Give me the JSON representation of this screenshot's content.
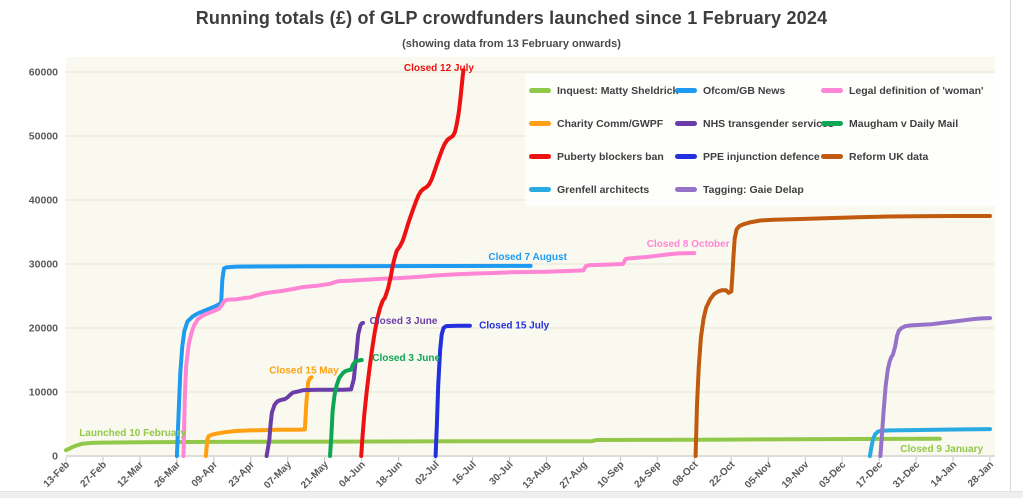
{
  "title": "Running totals (£) of GLP crowdfunders launched since 1 February 2024",
  "subtitle": "(showing data from 13 February onwards)",
  "chart_data": {
    "type": "line",
    "x_tick_labels": [
      "13-Feb",
      "27-Feb",
      "12-Mar",
      "26-Mar",
      "09-Apr",
      "23-Apr",
      "07-May",
      "21-May",
      "04-Jun",
      "18-Jun",
      "02-Jul",
      "16-Jul",
      "30-Jul",
      "13-Aug",
      "27-Aug",
      "10-Sep",
      "24-Sep",
      "08-Oct",
      "22-Oct",
      "05-Nov",
      "19-Nov",
      "03-Dec",
      "17-Dec",
      "31-Dec",
      "14-Jan",
      "28-Jan"
    ],
    "x_tick_interval_days": 14,
    "x_range_days": [
      0,
      350
    ],
    "y_ticks": [
      0,
      10000,
      20000,
      30000,
      40000,
      50000,
      60000
    ],
    "ylim": [
      0,
      60000
    ],
    "grid": true,
    "legend_position": "top-right, 3 columns, white box over plot",
    "plot_bg": "#FAF9EF",
    "grid_color": "#E6E5DA",
    "axis_color": "#C0C0C0",
    "label_color": "#595959",
    "series": [
      {
        "name": "Inquest: Matty Sheldrick",
        "color": "#92C849",
        "points": [
          [
            0,
            900
          ],
          [
            3,
            1500
          ],
          [
            6,
            1900
          ],
          [
            10,
            2050
          ],
          [
            14,
            2100
          ],
          [
            28,
            2150
          ],
          [
            56,
            2200
          ],
          [
            100,
            2250
          ],
          [
            150,
            2300
          ],
          [
            199,
            2300
          ],
          [
            201,
            2500
          ],
          [
            240,
            2550
          ],
          [
            300,
            2650
          ],
          [
            331,
            2700
          ]
        ]
      },
      {
        "name": "Ofcom/GB News",
        "color": "#1E9BF0",
        "points": [
          [
            42,
            0
          ],
          [
            42.7,
            7000
          ],
          [
            43.3,
            13000
          ],
          [
            44,
            17000
          ],
          [
            44.8,
            19500
          ],
          [
            46,
            21000
          ],
          [
            48,
            21800
          ],
          [
            50,
            22300
          ],
          [
            53,
            22800
          ],
          [
            56,
            23300
          ],
          [
            58,
            23700
          ],
          [
            58.8,
            24000
          ],
          [
            59.2,
            27500
          ],
          [
            59.8,
            29300
          ],
          [
            61,
            29500
          ],
          [
            65,
            29600
          ],
          [
            90,
            29650
          ],
          [
            176,
            29700
          ]
        ]
      },
      {
        "name": "Legal definition of 'woman'",
        "color": "#FF85D5",
        "points": [
          [
            44.5,
            0
          ],
          [
            45,
            9000
          ],
          [
            45.5,
            14000
          ],
          [
            46.5,
            17500
          ],
          [
            47.5,
            19200
          ],
          [
            48.5,
            20400
          ],
          [
            50,
            21400
          ],
          [
            52,
            22000
          ],
          [
            55,
            22500
          ],
          [
            58,
            23000
          ],
          [
            60,
            24200
          ],
          [
            61,
            24400
          ],
          [
            65,
            24500
          ],
          [
            68,
            24700
          ],
          [
            70,
            24800
          ],
          [
            72,
            25100
          ],
          [
            75,
            25400
          ],
          [
            78,
            25600
          ],
          [
            82,
            25800
          ],
          [
            86,
            26100
          ],
          [
            90,
            26400
          ],
          [
            95,
            26600
          ],
          [
            100,
            26900
          ],
          [
            103,
            27300
          ],
          [
            108,
            27400
          ],
          [
            112,
            27500
          ],
          [
            120,
            27700
          ],
          [
            126,
            27800
          ],
          [
            134,
            28000
          ],
          [
            140,
            28200
          ],
          [
            148,
            28400
          ],
          [
            154,
            28500
          ],
          [
            162,
            28600
          ],
          [
            168,
            28700
          ],
          [
            176,
            28750
          ],
          [
            182,
            28800
          ],
          [
            190,
            28900
          ],
          [
            196,
            29000
          ],
          [
            197,
            29700
          ],
          [
            198,
            29800
          ],
          [
            205,
            29900
          ],
          [
            211,
            30000
          ],
          [
            212,
            30800
          ],
          [
            214,
            30900
          ],
          [
            220,
            31100
          ],
          [
            224,
            31300
          ],
          [
            228,
            31500
          ],
          [
            232,
            31650
          ],
          [
            238,
            31700
          ]
        ]
      },
      {
        "name": "Charity Comm/GWPF",
        "color": "#FFA012",
        "points": [
          [
            53,
            0
          ],
          [
            53.5,
            2500
          ],
          [
            54,
            3100
          ],
          [
            55,
            3300
          ],
          [
            57,
            3500
          ],
          [
            60,
            3700
          ],
          [
            63,
            3850
          ],
          [
            66,
            3950
          ],
          [
            70,
            4000
          ],
          [
            75,
            4050
          ],
          [
            80,
            4100
          ],
          [
            88,
            4100
          ],
          [
            90.5,
            4150
          ],
          [
            91,
            8000
          ],
          [
            91.7,
            11500
          ],
          [
            92.5,
            12200
          ],
          [
            93,
            12300
          ]
        ]
      },
      {
        "name": "NHS transgender services",
        "color": "#6A3DA8",
        "points": [
          [
            76,
            0
          ],
          [
            77,
            2500
          ],
          [
            77.5,
            5000
          ],
          [
            78,
            6800
          ],
          [
            79,
            8000
          ],
          [
            80,
            8500
          ],
          [
            81,
            8700
          ],
          [
            83,
            8900
          ],
          [
            84,
            9200
          ],
          [
            85,
            9600
          ],
          [
            86,
            9900
          ],
          [
            88,
            10100
          ],
          [
            90,
            10300
          ],
          [
            95,
            10350
          ],
          [
            105,
            10350
          ],
          [
            108,
            10400
          ],
          [
            109,
            12000
          ],
          [
            110,
            16000
          ],
          [
            110.7,
            19000
          ],
          [
            111.5,
            20400
          ],
          [
            112,
            20700
          ],
          [
            112.5,
            20800
          ]
        ]
      },
      {
        "name": "Maugham v Daily Mail",
        "color": "#0DA655",
        "points": [
          [
            100,
            0
          ],
          [
            100.5,
            3000
          ],
          [
            101,
            7000
          ],
          [
            101.7,
            9500
          ],
          [
            102.5,
            11000
          ],
          [
            103.5,
            12200
          ],
          [
            105,
            13000
          ],
          [
            106,
            13300
          ],
          [
            107,
            13400
          ],
          [
            108,
            13500
          ],
          [
            108.7,
            14300
          ],
          [
            109.5,
            14700
          ],
          [
            110.5,
            14900
          ],
          [
            112,
            15000
          ]
        ]
      },
      {
        "name": "Puberty blockers ban",
        "color": "#EE1111",
        "points": [
          [
            111.8,
            0
          ],
          [
            112.3,
            3000
          ],
          [
            113,
            6500
          ],
          [
            114,
            10500
          ],
          [
            115,
            13800
          ],
          [
            116,
            16800
          ],
          [
            117,
            19500
          ],
          [
            118,
            21600
          ],
          [
            119,
            23200
          ],
          [
            120,
            24300
          ],
          [
            120.8,
            24700
          ],
          [
            122,
            26200
          ],
          [
            123,
            28000
          ],
          [
            123.8,
            29800
          ],
          [
            124.5,
            31000
          ],
          [
            125.3,
            32100
          ],
          [
            126.5,
            32800
          ],
          [
            127.5,
            33600
          ],
          [
            128.5,
            34800
          ],
          [
            129.5,
            36200
          ],
          [
            130.5,
            37400
          ],
          [
            131.5,
            38600
          ],
          [
            132.5,
            39700
          ],
          [
            133.5,
            40700
          ],
          [
            134.3,
            41300
          ],
          [
            135.3,
            41700
          ],
          [
            136.5,
            42000
          ],
          [
            137.5,
            42400
          ],
          [
            138.5,
            43200
          ],
          [
            139.5,
            44400
          ],
          [
            140.5,
            45600
          ],
          [
            141.5,
            46800
          ],
          [
            142.5,
            47900
          ],
          [
            143.5,
            48800
          ],
          [
            144.5,
            49400
          ],
          [
            145.5,
            49700
          ],
          [
            146.5,
            50000
          ],
          [
            147.3,
            50600
          ],
          [
            148,
            51800
          ],
          [
            148.7,
            53500
          ],
          [
            149.3,
            55500
          ],
          [
            149.8,
            57500
          ],
          [
            150.3,
            59500
          ],
          [
            150.6,
            60300
          ]
        ]
      },
      {
        "name": "PPE injunction defence",
        "color": "#2230DD",
        "points": [
          [
            140,
            0
          ],
          [
            140.5,
            5000
          ],
          [
            141,
            11000
          ],
          [
            141.7,
            16500
          ],
          [
            142.3,
            19000
          ],
          [
            143,
            20000
          ],
          [
            144,
            20300
          ],
          [
            148,
            20350
          ],
          [
            153,
            20350
          ]
        ]
      },
      {
        "name": "Reform UK data",
        "color": "#C1590F",
        "points": [
          [
            238.5,
            0
          ],
          [
            239,
            8000
          ],
          [
            239.7,
            14000
          ],
          [
            240.5,
            18500
          ],
          [
            241.5,
            21500
          ],
          [
            242.5,
            23200
          ],
          [
            244,
            24500
          ],
          [
            245.5,
            25300
          ],
          [
            247,
            25700
          ],
          [
            248.5,
            25900
          ],
          [
            250,
            25900
          ],
          [
            251,
            25500
          ],
          [
            252,
            25700
          ],
          [
            252.4,
            28000
          ],
          [
            252.8,
            31000
          ],
          [
            253.3,
            34000
          ],
          [
            254,
            35400
          ],
          [
            255,
            35900
          ],
          [
            256.5,
            36200
          ],
          [
            259,
            36500
          ],
          [
            263,
            36800
          ],
          [
            268,
            36900
          ],
          [
            275,
            37000
          ],
          [
            283,
            37100
          ],
          [
            292,
            37200
          ],
          [
            300,
            37300
          ],
          [
            310,
            37400
          ],
          [
            322,
            37450
          ],
          [
            336,
            37500
          ],
          [
            350,
            37500
          ]
        ]
      },
      {
        "name": "Grenfell architects",
        "color": "#29ABE2",
        "points": [
          [
            304.5,
            0
          ],
          [
            305,
            1200
          ],
          [
            305.7,
            2600
          ],
          [
            306.5,
            3400
          ],
          [
            307.5,
            3800
          ],
          [
            309,
            3950
          ],
          [
            312,
            4000
          ],
          [
            320,
            4050
          ],
          [
            330,
            4100
          ],
          [
            340,
            4150
          ],
          [
            350,
            4200
          ]
        ]
      },
      {
        "name": "Tagging: Gaie Delap",
        "color": "#9673C9",
        "points": [
          [
            308.5,
            0
          ],
          [
            309,
            3000
          ],
          [
            309.7,
            7000
          ],
          [
            310.5,
            11000
          ],
          [
            311.3,
            13500
          ],
          [
            312,
            14800
          ],
          [
            312.7,
            15500
          ],
          [
            313.2,
            15800
          ],
          [
            314,
            17000
          ],
          [
            314.8,
            18800
          ],
          [
            315.5,
            19600
          ],
          [
            316.5,
            20000
          ],
          [
            318,
            20300
          ],
          [
            320,
            20400
          ],
          [
            324,
            20500
          ],
          [
            328,
            20600
          ],
          [
            332,
            20800
          ],
          [
            336,
            21000
          ],
          [
            340,
            21200
          ],
          [
            344,
            21400
          ],
          [
            347,
            21500
          ],
          [
            350,
            21550
          ]
        ]
      }
    ],
    "annotations": [
      {
        "text": "Launched 10 February",
        "series": 0,
        "day": 5,
        "value": 3700,
        "anchor": "start"
      },
      {
        "text": "Closed 15 May",
        "series": 3,
        "day": 77,
        "value": 13400,
        "anchor": "start"
      },
      {
        "text": "Closed 3 June",
        "series": 4,
        "day": 115,
        "value": 21200,
        "anchor": "start"
      },
      {
        "text": "Closed 3 June",
        "series": 5,
        "day": 116,
        "value": 15400,
        "anchor": "start"
      },
      {
        "text": "Closed 12 July",
        "series": 6,
        "day": 128,
        "value": 60700,
        "anchor": "start"
      },
      {
        "text": "Closed 15 July",
        "series": 7,
        "day": 156.5,
        "value": 20500,
        "anchor": "start"
      },
      {
        "text": "Closed 7 August",
        "series": 1,
        "day": 160,
        "value": 31200,
        "anchor": "start"
      },
      {
        "text": "Closed 8 October",
        "series": 2,
        "day": 220,
        "value": 33200,
        "anchor": "start"
      },
      {
        "text": "Closed 9 January",
        "series": 0,
        "day": 316,
        "value": 1200,
        "anchor": "start"
      }
    ]
  }
}
